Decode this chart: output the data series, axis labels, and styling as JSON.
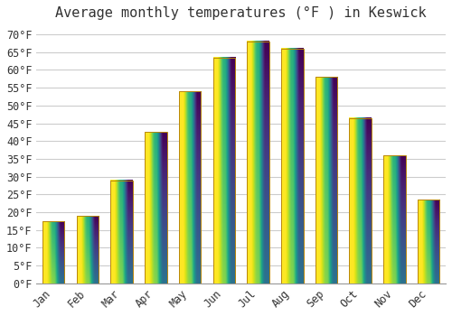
{
  "title": "Average monthly temperatures (°F ) in Keswick",
  "months": [
    "Jan",
    "Feb",
    "Mar",
    "Apr",
    "May",
    "Jun",
    "Jul",
    "Aug",
    "Sep",
    "Oct",
    "Nov",
    "Dec"
  ],
  "values": [
    17.5,
    19.0,
    29.0,
    42.5,
    54.0,
    63.5,
    68.0,
    66.0,
    58.0,
    46.5,
    36.0,
    23.5
  ],
  "bar_color_top": "#FFD060",
  "bar_color_bottom": "#FFA000",
  "bar_edge_color": "#B8860B",
  "background_color": "#FFFFFF",
  "plot_bg_color": "#FFFFFF",
  "grid_color": "#CCCCCC",
  "text_color": "#333333",
  "ylim": [
    0,
    72
  ],
  "yticks": [
    0,
    5,
    10,
    15,
    20,
    25,
    30,
    35,
    40,
    45,
    50,
    55,
    60,
    65,
    70
  ],
  "title_fontsize": 11,
  "tick_fontsize": 8.5,
  "font_family": "monospace"
}
